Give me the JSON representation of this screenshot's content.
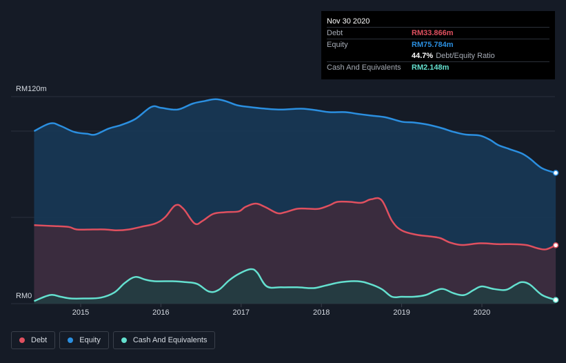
{
  "chart_data": {
    "type": "area",
    "title": "",
    "y_axis_labels": {
      "top": "RM120m",
      "bottom": "RM0"
    },
    "ylim": [
      0,
      120
    ],
    "xlim": [
      2014.4,
      2020.92
    ],
    "x_ticks": [
      "2015",
      "2016",
      "2017",
      "2018",
      "2019",
      "2020"
    ],
    "x_tick_values": [
      2015,
      2016,
      2017,
      2018,
      2019,
      2020
    ],
    "series": [
      {
        "name": "Equity",
        "color": "#2b8fe0",
        "fill": "#173956",
        "points": [
          [
            2014.42,
            100
          ],
          [
            2014.62,
            104.5
          ],
          [
            2014.75,
            103
          ],
          [
            2014.92,
            99.5
          ],
          [
            2015.08,
            98.5
          ],
          [
            2015.18,
            98
          ],
          [
            2015.35,
            101.5
          ],
          [
            2015.5,
            103.5
          ],
          [
            2015.68,
            107
          ],
          [
            2015.88,
            114
          ],
          [
            2016.0,
            113.5
          ],
          [
            2016.15,
            112.5
          ],
          [
            2016.25,
            113
          ],
          [
            2016.4,
            116
          ],
          [
            2016.55,
            117.5
          ],
          [
            2016.68,
            118.5
          ],
          [
            2016.8,
            117.5
          ],
          [
            2016.95,
            115
          ],
          [
            2017.1,
            114
          ],
          [
            2017.3,
            113
          ],
          [
            2017.5,
            112.5
          ],
          [
            2017.75,
            113
          ],
          [
            2017.95,
            112
          ],
          [
            2018.1,
            111
          ],
          [
            2018.3,
            111
          ],
          [
            2018.45,
            110
          ],
          [
            2018.62,
            109
          ],
          [
            2018.8,
            108
          ],
          [
            2019.0,
            105.5
          ],
          [
            2019.15,
            105
          ],
          [
            2019.3,
            104
          ],
          [
            2019.48,
            102
          ],
          [
            2019.65,
            99.5
          ],
          [
            2019.8,
            98
          ],
          [
            2019.97,
            97.5
          ],
          [
            2020.1,
            95
          ],
          [
            2020.2,
            92
          ],
          [
            2020.35,
            89.5
          ],
          [
            2020.5,
            87
          ],
          [
            2020.6,
            84
          ],
          [
            2020.75,
            78.5
          ],
          [
            2020.92,
            75.784
          ]
        ]
      },
      {
        "name": "Debt",
        "color": "#e0505f",
        "fill": "#3e2b3c",
        "points": [
          [
            2014.42,
            45.5
          ],
          [
            2014.65,
            45
          ],
          [
            2014.85,
            44.5
          ],
          [
            2014.95,
            43
          ],
          [
            2015.15,
            43
          ],
          [
            2015.3,
            43
          ],
          [
            2015.45,
            42.5
          ],
          [
            2015.6,
            43
          ],
          [
            2015.75,
            44.5
          ],
          [
            2015.93,
            46.5
          ],
          [
            2016.05,
            50
          ],
          [
            2016.18,
            57
          ],
          [
            2016.28,
            55
          ],
          [
            2016.42,
            46.5
          ],
          [
            2016.52,
            48
          ],
          [
            2016.65,
            52
          ],
          [
            2016.8,
            53
          ],
          [
            2016.97,
            53.5
          ],
          [
            2017.05,
            56
          ],
          [
            2017.18,
            58
          ],
          [
            2017.3,
            56
          ],
          [
            2017.45,
            52.5
          ],
          [
            2017.55,
            53
          ],
          [
            2017.7,
            55
          ],
          [
            2017.85,
            55
          ],
          [
            2017.97,
            55
          ],
          [
            2018.1,
            57
          ],
          [
            2018.2,
            59
          ],
          [
            2018.35,
            59
          ],
          [
            2018.5,
            58.5
          ],
          [
            2018.62,
            60.5
          ],
          [
            2018.75,
            60
          ],
          [
            2018.88,
            48
          ],
          [
            2019.0,
            42.5
          ],
          [
            2019.18,
            40
          ],
          [
            2019.35,
            39
          ],
          [
            2019.48,
            38
          ],
          [
            2019.6,
            35.5
          ],
          [
            2019.75,
            34
          ],
          [
            2019.98,
            35
          ],
          [
            2020.2,
            34.5
          ],
          [
            2020.35,
            34.5
          ],
          [
            2020.55,
            34
          ],
          [
            2020.7,
            32
          ],
          [
            2020.8,
            31.5
          ],
          [
            2020.92,
            33.866
          ]
        ]
      },
      {
        "name": "Cash And Equivalents",
        "color": "#64e0cf",
        "fill": "#243d41",
        "points": [
          [
            2014.42,
            1.5
          ],
          [
            2014.62,
            5
          ],
          [
            2014.75,
            4
          ],
          [
            2014.88,
            3
          ],
          [
            2015.05,
            3
          ],
          [
            2015.25,
            3.5
          ],
          [
            2015.42,
            6.5
          ],
          [
            2015.55,
            12
          ],
          [
            2015.68,
            15.5
          ],
          [
            2015.8,
            14
          ],
          [
            2015.92,
            13
          ],
          [
            2016.15,
            13
          ],
          [
            2016.3,
            12.5
          ],
          [
            2016.45,
            11.5
          ],
          [
            2016.6,
            7
          ],
          [
            2016.72,
            8
          ],
          [
            2016.85,
            13.5
          ],
          [
            2016.98,
            17.5
          ],
          [
            2017.12,
            20
          ],
          [
            2017.2,
            18
          ],
          [
            2017.32,
            10
          ],
          [
            2017.5,
            9.5
          ],
          [
            2017.7,
            9.5
          ],
          [
            2017.9,
            9
          ],
          [
            2018.05,
            10.5
          ],
          [
            2018.25,
            12.5
          ],
          [
            2018.45,
            13
          ],
          [
            2018.6,
            11.5
          ],
          [
            2018.75,
            8.5
          ],
          [
            2018.88,
            4
          ],
          [
            2019.0,
            4
          ],
          [
            2019.15,
            4
          ],
          [
            2019.3,
            5
          ],
          [
            2019.42,
            7.5
          ],
          [
            2019.52,
            8.5
          ],
          [
            2019.65,
            6
          ],
          [
            2019.78,
            5
          ],
          [
            2019.9,
            8
          ],
          [
            2020.0,
            10
          ],
          [
            2020.15,
            8.5
          ],
          [
            2020.3,
            8
          ],
          [
            2020.42,
            11
          ],
          [
            2020.5,
            12.5
          ],
          [
            2020.6,
            11
          ],
          [
            2020.75,
            5
          ],
          [
            2020.92,
            2.148
          ]
        ]
      }
    ]
  },
  "tooltip": {
    "date": "Nov 30 2020",
    "debt_label": "Debt",
    "debt_value": "RM33.866m",
    "equity_label": "Equity",
    "equity_value": "RM75.784m",
    "ratio_value": "44.7%",
    "ratio_text": "Debt/Equity Ratio",
    "cash_label": "Cash And Equivalents",
    "cash_value": "RM2.148m"
  },
  "legend": {
    "items": [
      {
        "label": "Debt",
        "color": "#e0505f"
      },
      {
        "label": "Equity",
        "color": "#2b8fe0"
      },
      {
        "label": "Cash And Equivalents",
        "color": "#64e0cf"
      }
    ]
  },
  "colors": {
    "debt": "#e0505f",
    "equity": "#2b8fe0",
    "cash": "#64e0cf",
    "gridline": "#2c323d"
  }
}
